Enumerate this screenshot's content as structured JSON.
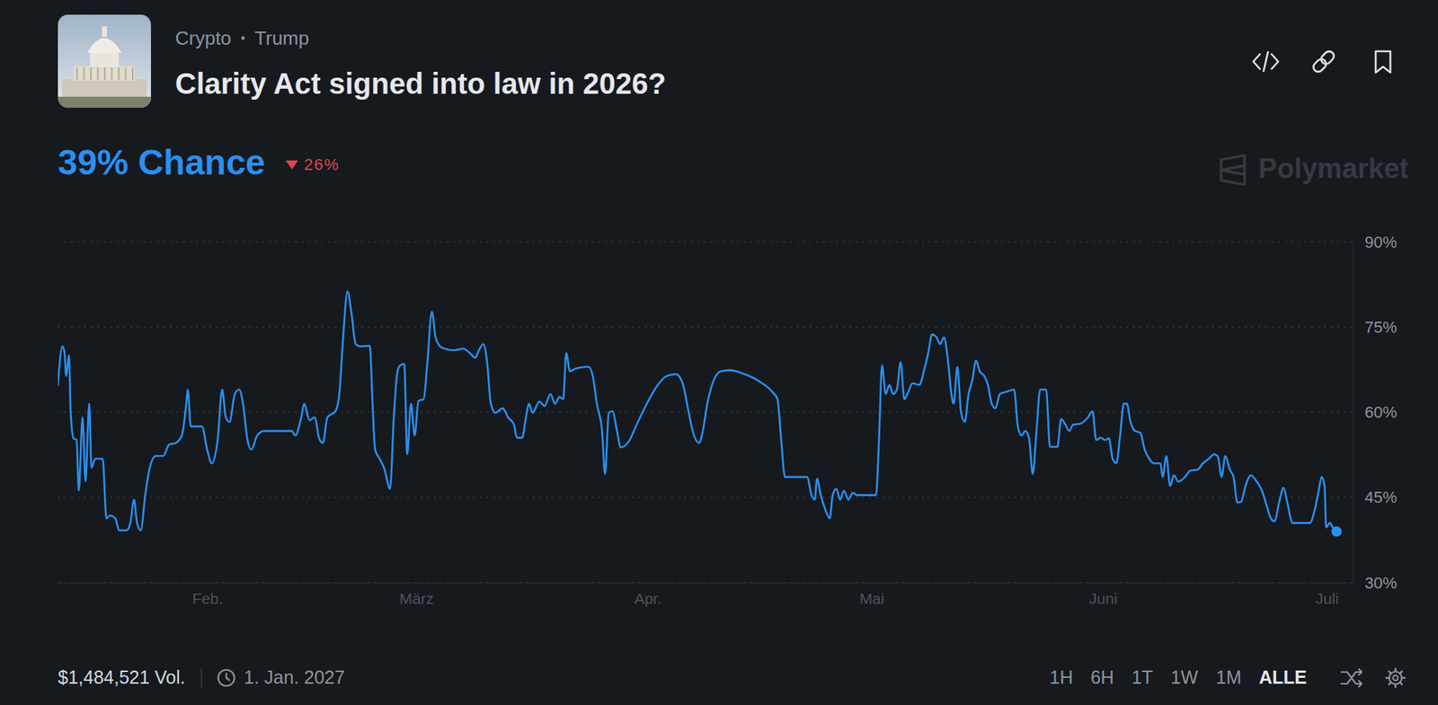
{
  "chart_data": {
    "type": "line",
    "title": "Clarity Act signed into law in 2026?",
    "color": "#2a90f0",
    "grid": true,
    "xlim": [
      12,
      185.5
    ],
    "xticks": [
      {
        "value": 32,
        "label": "Feb."
      },
      {
        "value": 60,
        "label": "März"
      },
      {
        "value": 91,
        "label": "Apr."
      },
      {
        "value": 121,
        "label": "Mai"
      },
      {
        "value": 152,
        "label": "Juni"
      },
      {
        "value": 182,
        "label": "Juli"
      }
    ],
    "ylim": [
      30,
      90
    ],
    "yticks": [
      {
        "value": 30,
        "label": "30%"
      },
      {
        "value": 45,
        "label": "45%"
      },
      {
        "value": 60,
        "label": "60%"
      },
      {
        "value": 75,
        "label": "75%"
      },
      {
        "value": 90,
        "label": "90%"
      }
    ],
    "x": [
      12.0,
      12.6,
      12.9,
      13.1,
      13.5,
      13.7,
      14.1,
      14.5,
      14.8,
      15.3,
      15.7,
      16.2,
      16.5,
      17.0,
      18.0,
      18.5,
      19.0,
      19.7,
      20.2,
      21.2,
      21.7,
      22.2,
      22.6,
      23.1,
      23.7,
      24.3,
      25.1,
      26.1,
      26.9,
      27.8,
      28.6,
      29.2,
      29.4,
      29.8,
      31.3,
      32.0,
      32.6,
      33.4,
      34.0,
      34.5,
      35.0,
      35.7,
      36.3,
      36.8,
      37.4,
      37.9,
      38.7,
      39.6,
      43.3,
      43.8,
      44.6,
      45.0,
      45.7,
      46.4,
      47.0,
      47.5,
      48.1,
      49.2,
      49.7,
      50.2,
      50.8,
      51.3,
      51.9,
      52.5,
      53.8,
      54.1,
      54.5,
      55.1,
      55.7,
      56.5,
      57.0,
      57.5,
      57.9,
      58.4,
      58.8,
      59.3,
      59.8,
      60.3,
      61.0,
      61.5,
      62.1,
      62.6,
      63.2,
      63.8,
      65.1,
      66.3,
      67.2,
      67.9,
      68.4,
      69.0,
      69.5,
      70.0,
      70.6,
      71.6,
      72.3,
      73.1,
      73.5,
      74.2,
      74.7,
      75.1,
      75.6,
      76.5,
      77.2,
      78.0,
      78.6,
      79.2,
      79.7,
      80.1,
      80.6,
      81.4,
      83.1,
      83.7,
      84.2,
      84.9,
      85.3,
      85.8,
      86.3,
      86.9,
      87.4,
      88.4,
      89.6,
      90.9,
      92.1,
      93.6,
      94.8,
      95.7,
      96.4,
      97.1,
      97.9,
      98.4,
      99.0,
      99.8,
      100.8,
      102.0,
      104.0,
      106.0,
      107.7,
      108.4,
      108.9,
      109.4,
      112.4,
      112.9,
      113.4,
      113.7,
      114.2,
      114.8,
      115.4,
      115.8,
      116.3,
      116.8,
      117.3,
      117.9,
      118.5,
      119.1,
      121.6,
      122.0,
      122.4,
      122.9,
      123.4,
      123.9,
      124.4,
      124.9,
      125.4,
      125.9,
      126.5,
      127.4,
      128.1,
      128.6,
      129.1,
      129.7,
      130.2,
      130.7,
      131.2,
      131.7,
      132.0,
      132.5,
      133.0,
      133.5,
      134.0,
      134.5,
      135.0,
      135.5,
      136.1,
      136.6,
      137.1,
      137.6,
      138.2,
      139.1,
      140.1,
      140.6,
      141.1,
      141.6,
      142.1,
      142.6,
      143.1,
      143.6,
      144.4,
      144.9,
      145.9,
      146.4,
      146.9,
      147.5,
      148.0,
      149.0,
      150.0,
      150.6,
      151.1,
      151.7,
      152.3,
      152.8,
      153.3,
      153.8,
      154.3,
      154.8,
      155.2,
      155.7,
      156.3,
      157.0,
      157.6,
      158.2,
      158.8,
      159.7,
      160.0,
      160.5,
      161.0,
      161.5,
      162.1,
      163.0,
      163.7,
      164.7,
      165.4,
      166.2,
      166.9,
      167.4,
      167.9,
      168.4,
      169.0,
      169.5,
      170.0,
      170.5,
      171.1,
      171.8,
      172.6,
      173.3,
      173.9,
      174.5,
      175.0,
      175.6,
      176.2,
      176.7,
      177.4,
      179.7,
      180.4,
      180.9,
      181.3,
      181.7,
      181.9,
      182.4,
      182.8,
      183.3
    ],
    "values": [
      64.8,
      71.6,
      70.4,
      66.4,
      70.0,
      60.2,
      55.4,
      55.1,
      46.2,
      59.1,
      47.8,
      61.5,
      50.2,
      51.8,
      51.8,
      41.3,
      41.8,
      41.3,
      39.2,
      39.2,
      40.5,
      44.6,
      40.5,
      39.2,
      45.4,
      50.2,
      52.3,
      52.3,
      54.3,
      54.6,
      55.9,
      61.5,
      64.0,
      57.5,
      57.5,
      53.4,
      51.0,
      55.1,
      64.0,
      59.1,
      58.3,
      63.2,
      64.0,
      61.5,
      55.1,
      53.4,
      55.9,
      56.7,
      56.7,
      55.9,
      59.1,
      61.5,
      58.6,
      59.1,
      55.4,
      54.6,
      59.1,
      60.2,
      63.2,
      72.9,
      81.3,
      77.7,
      72.0,
      71.6,
      71.7,
      63.2,
      53.4,
      51.8,
      50.2,
      46.5,
      59.1,
      67.2,
      68.3,
      68.5,
      52.6,
      61.5,
      55.9,
      62.0,
      62.3,
      68.8,
      77.7,
      73.2,
      71.6,
      71.2,
      70.9,
      71.2,
      70.4,
      69.6,
      70.9,
      72.0,
      68.8,
      61.5,
      59.9,
      60.7,
      59.1,
      57.8,
      55.5,
      55.5,
      59.1,
      61.5,
      59.9,
      61.9,
      61.1,
      63.2,
      61.5,
      62.7,
      62.3,
      70.4,
      67.2,
      67.7,
      68.0,
      66.1,
      61.5,
      56.7,
      49.1,
      59.9,
      60.2,
      56.7,
      53.8,
      54.7,
      58.0,
      61.5,
      64.3,
      66.4,
      66.7,
      65.1,
      60.7,
      56.4,
      54.6,
      56.7,
      61.5,
      65.4,
      67.2,
      67.4,
      66.7,
      65.4,
      63.6,
      62.3,
      55.1,
      48.6,
      48.6,
      45.7,
      44.6,
      48.3,
      45.4,
      42.9,
      41.3,
      45.4,
      46.5,
      44.6,
      46.2,
      44.6,
      45.8,
      45.4,
      45.4,
      55.1,
      68.3,
      63.2,
      64.8,
      63.2,
      64.0,
      68.8,
      62.3,
      63.5,
      65.1,
      64.8,
      67.7,
      70.4,
      73.7,
      73.2,
      72.0,
      73.2,
      69.6,
      63.2,
      61.5,
      68.0,
      59.9,
      58.3,
      63.2,
      65.6,
      69.1,
      67.2,
      66.4,
      64.8,
      61.5,
      60.7,
      63.2,
      63.6,
      64.0,
      57.5,
      55.9,
      56.7,
      55.4,
      49.1,
      56.7,
      64.0,
      64.0,
      53.9,
      53.9,
      58.8,
      58.0,
      56.7,
      57.8,
      58.0,
      59.1,
      60.2,
      55.1,
      55.5,
      55.1,
      55.4,
      51.8,
      51.0,
      55.9,
      61.5,
      61.5,
      58.3,
      56.7,
      56.4,
      53.4,
      51.8,
      51.0,
      51.0,
      48.6,
      52.3,
      47.0,
      48.9,
      47.8,
      48.6,
      49.7,
      49.9,
      51.0,
      51.8,
      52.6,
      52.2,
      48.6,
      52.3,
      49.9,
      48.6,
      44.1,
      44.2,
      47.0,
      48.9,
      47.8,
      46.2,
      43.7,
      41.3,
      40.8,
      44.1,
      46.7,
      44.1,
      40.5,
      40.5,
      42.9,
      46.2,
      48.6,
      47.0,
      39.7,
      40.5,
      39.7,
      39.0
    ]
  },
  "header": {
    "tags": [
      "Crypto",
      "Trump"
    ],
    "headline": "39% Chance",
    "change": "26%",
    "change_direction": "down",
    "brand": "Polymarket"
  },
  "footer": {
    "volume": "$1,484,521 Vol.",
    "end_date": "1. Jan. 2027",
    "ranges": [
      "1H",
      "6H",
      "1T",
      "1W",
      "1M",
      "ALLE"
    ],
    "active_range": "ALLE"
  }
}
